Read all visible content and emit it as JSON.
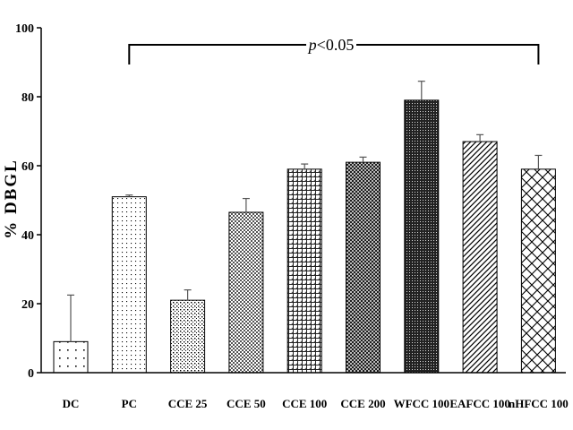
{
  "chart_data": {
    "type": "bar",
    "ylabel": "% DBGL",
    "xlabel": "",
    "ylim": [
      0,
      100
    ],
    "yticks": [
      0,
      20,
      40,
      60,
      80,
      100
    ],
    "categories": [
      "DC",
      "PC",
      "CCE 25",
      "CCE 50",
      "CCE 100",
      "CCE 200",
      "WFCC 100",
      "EAFCC 100",
      "nHFCC 100"
    ],
    "values": [
      9,
      51,
      21,
      46.5,
      59,
      61,
      79,
      67,
      59
    ],
    "errors": [
      13.5,
      0.5,
      3,
      4,
      1.5,
      1.5,
      5.5,
      2,
      4
    ],
    "patterns": [
      "sparse-dots",
      "fine-dots",
      "dense-dots",
      "checker",
      "cross-dots",
      "crosshatch-dense",
      "dark-dense",
      "diagonal-lines",
      "diamond-lattice"
    ],
    "annotation": {
      "prefix": "p",
      "suffix": "<0.05",
      "from_category": "PC",
      "to_category": "nHFCC 100"
    },
    "grid": false,
    "legend": "none"
  }
}
